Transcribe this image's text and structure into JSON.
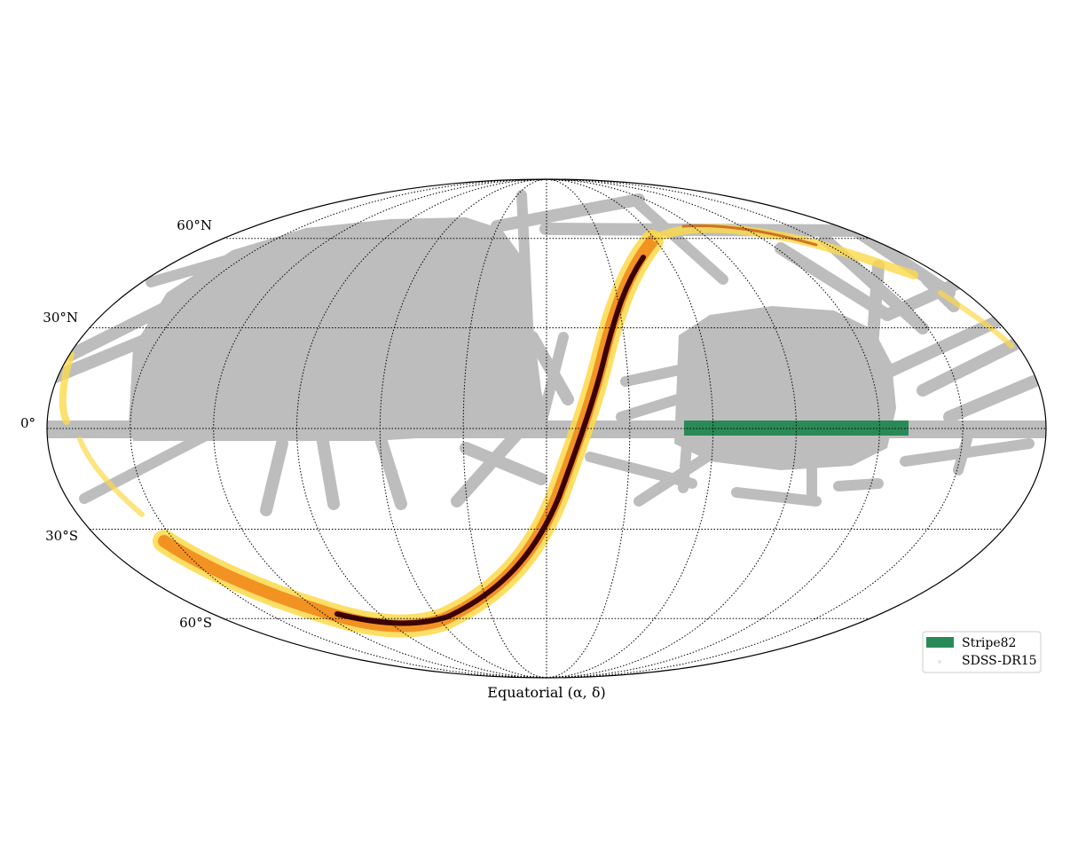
{
  "map": {
    "projection": "mollweide",
    "frame_label": "Equatorial (α, δ)",
    "lat_labels": [
      "60°N",
      "30°N",
      "0°",
      "30°S",
      "60°S"
    ],
    "lat_values": [
      60,
      30,
      0,
      -30,
      -60
    ],
    "meridians_deg": [
      -180,
      -150,
      -120,
      -90,
      -60,
      -30,
      0,
      30,
      60,
      90,
      120,
      150,
      180
    ],
    "parallels_deg": [
      -60,
      -30,
      0,
      30,
      60
    ],
    "colors": {
      "sdss": "#bdbdbd",
      "stripe82": "#2a8a57",
      "density_low": "#fdd94a",
      "density_mid": "#f08a1c",
      "density_high": "#3d0000"
    }
  },
  "legend": {
    "items": [
      {
        "label": "Stripe82",
        "color": "#2a8a57",
        "marker": "patch"
      },
      {
        "label": "SDSS-DR15",
        "color": "#bdbdbd",
        "marker": "dot"
      }
    ]
  }
}
